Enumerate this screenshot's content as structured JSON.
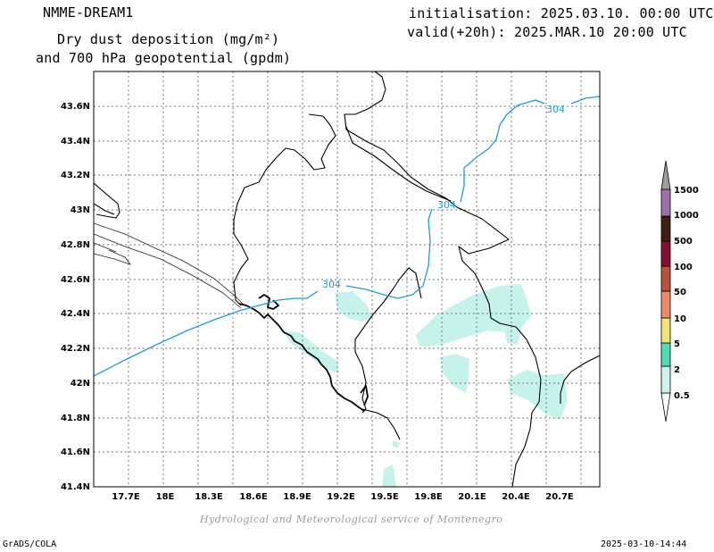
{
  "header": {
    "model": "NMME-DREAM1",
    "title_line1": "Dry dust deposition (mg/m²)",
    "title_line2": "and 700 hPa geopotential (gpdm)",
    "init": "initialisation: 2025.03.10. 00:00 UTC",
    "valid": "valid(+20h): 2025.MAR.10 20:00 UTC"
  },
  "map": {
    "lat_ticks": [
      "43.6N",
      "43.4N",
      "43.2N",
      "43N",
      "42.8N",
      "42.6N",
      "42.4N",
      "42.2N",
      "42N",
      "41.8N",
      "41.6N",
      "41.4N"
    ],
    "lon_ticks": [
      "17.7E",
      "18E",
      "18.3E",
      "18.6E",
      "18.9E",
      "19.2E",
      "19.5E",
      "19.8E",
      "20.1E",
      "20.4E",
      "20.7E"
    ],
    "contour_labels": [
      "304",
      "304",
      "304"
    ],
    "contour_color": "#1e9be0",
    "dust_color": "#c6f2ec"
  },
  "colorbar": {
    "levels": [
      "1500",
      "1000",
      "500",
      "100",
      "50",
      "10",
      "5",
      "2",
      "0.5"
    ],
    "colors": [
      "#ffffff",
      "#cdf3ef",
      "#4fdcb3",
      "#f2e27a",
      "#ee8a6a",
      "#c0503e",
      "#8a0d35",
      "#3e1f14",
      "#9f70a9",
      "#9c9c9c"
    ]
  },
  "footer": {
    "credit": "Hydrological and Meteorological service of Montenegro",
    "software": "GrADS/COLA",
    "timestamp": "2025-03-10-14:44"
  }
}
